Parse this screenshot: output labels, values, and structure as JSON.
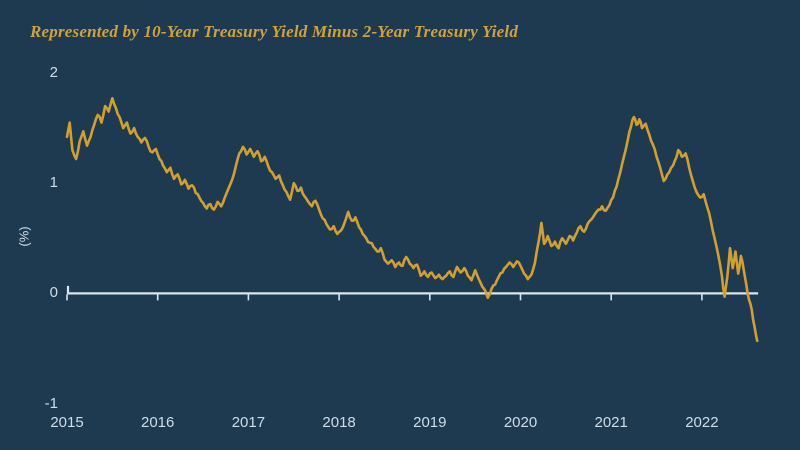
{
  "title": "Represented by 10-Year Treasury Yield Minus 2-Year Treasury Yield",
  "colors": {
    "background": "#1e3a50",
    "line": "#d2a02e",
    "axis": "#d9e6ee",
    "tick_label": "#cfdde8",
    "title": "#d0a23e"
  },
  "chart_data": {
    "type": "line",
    "title": "Represented by 10-Year Treasury Yield Minus 2-Year Treasury Yield",
    "ylabel": "(%)",
    "xlabel": "",
    "grid": false,
    "legend": "none",
    "xlim": [
      2015,
      2022.66
    ],
    "ylim": [
      -1,
      2
    ],
    "x_ticks": [
      2015,
      2016,
      2017,
      2018,
      2019,
      2020,
      2021,
      2022
    ],
    "y_ticks": [
      2,
      1,
      0,
      -1
    ],
    "zero_baseline": true,
    "series_label": "10-Year Treasury Yield minus 2-Year Treasury Yield",
    "points": [
      [
        2015.0,
        1.42
      ],
      [
        2015.03,
        1.55
      ],
      [
        2015.06,
        1.3
      ],
      [
        2015.1,
        1.22
      ],
      [
        2015.14,
        1.38
      ],
      [
        2015.18,
        1.47
      ],
      [
        2015.22,
        1.34
      ],
      [
        2015.26,
        1.42
      ],
      [
        2015.3,
        1.53
      ],
      [
        2015.34,
        1.62
      ],
      [
        2015.38,
        1.55
      ],
      [
        2015.42,
        1.7
      ],
      [
        2015.46,
        1.65
      ],
      [
        2015.5,
        1.77
      ],
      [
        2015.54,
        1.68
      ],
      [
        2015.58,
        1.6
      ],
      [
        2015.62,
        1.5
      ],
      [
        2015.66,
        1.55
      ],
      [
        2015.7,
        1.45
      ],
      [
        2015.74,
        1.5
      ],
      [
        2015.78,
        1.42
      ],
      [
        2015.82,
        1.37
      ],
      [
        2015.86,
        1.41
      ],
      [
        2015.9,
        1.33
      ],
      [
        2015.94,
        1.28
      ],
      [
        2015.98,
        1.31
      ],
      [
        2016.02,
        1.22
      ],
      [
        2016.06,
        1.16
      ],
      [
        2016.1,
        1.1
      ],
      [
        2016.14,
        1.14
      ],
      [
        2016.18,
        1.04
      ],
      [
        2016.22,
        1.08
      ],
      [
        2016.26,
        0.99
      ],
      [
        2016.3,
        1.03
      ],
      [
        2016.34,
        0.95
      ],
      [
        2016.38,
        0.98
      ],
      [
        2016.42,
        0.91
      ],
      [
        2016.46,
        0.87
      ],
      [
        2016.5,
        0.82
      ],
      [
        2016.54,
        0.77
      ],
      [
        2016.58,
        0.81
      ],
      [
        2016.62,
        0.76
      ],
      [
        2016.66,
        0.83
      ],
      [
        2016.7,
        0.79
      ],
      [
        2016.74,
        0.87
      ],
      [
        2016.78,
        0.95
      ],
      [
        2016.82,
        1.03
      ],
      [
        2016.86,
        1.15
      ],
      [
        2016.9,
        1.27
      ],
      [
        2016.94,
        1.33
      ],
      [
        2016.98,
        1.26
      ],
      [
        2017.02,
        1.31
      ],
      [
        2017.06,
        1.24
      ],
      [
        2017.1,
        1.29
      ],
      [
        2017.14,
        1.2
      ],
      [
        2017.18,
        1.24
      ],
      [
        2017.22,
        1.15
      ],
      [
        2017.26,
        1.1
      ],
      [
        2017.3,
        1.04
      ],
      [
        2017.34,
        1.07
      ],
      [
        2017.38,
        0.98
      ],
      [
        2017.42,
        0.92
      ],
      [
        2017.46,
        0.85
      ],
      [
        2017.5,
        1.0
      ],
      [
        2017.54,
        0.93
      ],
      [
        2017.58,
        0.96
      ],
      [
        2017.62,
        0.88
      ],
      [
        2017.66,
        0.83
      ],
      [
        2017.7,
        0.79
      ],
      [
        2017.74,
        0.84
      ],
      [
        2017.78,
        0.76
      ],
      [
        2017.82,
        0.68
      ],
      [
        2017.86,
        0.63
      ],
      [
        2017.9,
        0.58
      ],
      [
        2017.94,
        0.61
      ],
      [
        2017.98,
        0.54
      ],
      [
        2018.02,
        0.57
      ],
      [
        2018.06,
        0.64
      ],
      [
        2018.1,
        0.74
      ],
      [
        2018.14,
        0.66
      ],
      [
        2018.18,
        0.69
      ],
      [
        2018.22,
        0.6
      ],
      [
        2018.26,
        0.54
      ],
      [
        2018.3,
        0.5
      ],
      [
        2018.34,
        0.46
      ],
      [
        2018.38,
        0.42
      ],
      [
        2018.42,
        0.38
      ],
      [
        2018.46,
        0.41
      ],
      [
        2018.5,
        0.31
      ],
      [
        2018.54,
        0.27
      ],
      [
        2018.58,
        0.3
      ],
      [
        2018.62,
        0.24
      ],
      [
        2018.66,
        0.28
      ],
      [
        2018.7,
        0.25
      ],
      [
        2018.74,
        0.33
      ],
      [
        2018.78,
        0.27
      ],
      [
        2018.82,
        0.23
      ],
      [
        2018.86,
        0.26
      ],
      [
        2018.9,
        0.16
      ],
      [
        2018.94,
        0.2
      ],
      [
        2018.98,
        0.15
      ],
      [
        2019.02,
        0.19
      ],
      [
        2019.06,
        0.14
      ],
      [
        2019.1,
        0.17
      ],
      [
        2019.14,
        0.13
      ],
      [
        2019.18,
        0.16
      ],
      [
        2019.22,
        0.2
      ],
      [
        2019.26,
        0.15
      ],
      [
        2019.3,
        0.24
      ],
      [
        2019.34,
        0.19
      ],
      [
        2019.38,
        0.23
      ],
      [
        2019.42,
        0.16
      ],
      [
        2019.46,
        0.12
      ],
      [
        2019.5,
        0.21
      ],
      [
        2019.54,
        0.13
      ],
      [
        2019.58,
        0.06
      ],
      [
        2019.62,
        0.01
      ],
      [
        2019.64,
        -0.04
      ],
      [
        2019.68,
        0.04
      ],
      [
        2019.72,
        0.08
      ],
      [
        2019.76,
        0.15
      ],
      [
        2019.8,
        0.19
      ],
      [
        2019.84,
        0.24
      ],
      [
        2019.88,
        0.28
      ],
      [
        2019.92,
        0.24
      ],
      [
        2019.96,
        0.29
      ],
      [
        2020.0,
        0.25
      ],
      [
        2020.04,
        0.18
      ],
      [
        2020.08,
        0.13
      ],
      [
        2020.12,
        0.17
      ],
      [
        2020.16,
        0.28
      ],
      [
        2020.2,
        0.47
      ],
      [
        2020.23,
        0.64
      ],
      [
        2020.26,
        0.45
      ],
      [
        2020.3,
        0.52
      ],
      [
        2020.34,
        0.43
      ],
      [
        2020.38,
        0.47
      ],
      [
        2020.42,
        0.41
      ],
      [
        2020.46,
        0.5
      ],
      [
        2020.5,
        0.45
      ],
      [
        2020.54,
        0.52
      ],
      [
        2020.58,
        0.48
      ],
      [
        2020.62,
        0.55
      ],
      [
        2020.66,
        0.61
      ],
      [
        2020.7,
        0.56
      ],
      [
        2020.74,
        0.63
      ],
      [
        2020.78,
        0.67
      ],
      [
        2020.82,
        0.72
      ],
      [
        2020.86,
        0.76
      ],
      [
        2020.9,
        0.79
      ],
      [
        2020.94,
        0.75
      ],
      [
        2020.98,
        0.8
      ],
      [
        2021.02,
        0.87
      ],
      [
        2021.06,
        0.97
      ],
      [
        2021.1,
        1.1
      ],
      [
        2021.14,
        1.24
      ],
      [
        2021.18,
        1.38
      ],
      [
        2021.22,
        1.52
      ],
      [
        2021.25,
        1.6
      ],
      [
        2021.28,
        1.53
      ],
      [
        2021.31,
        1.58
      ],
      [
        2021.34,
        1.5
      ],
      [
        2021.38,
        1.54
      ],
      [
        2021.42,
        1.44
      ],
      [
        2021.46,
        1.35
      ],
      [
        2021.5,
        1.24
      ],
      [
        2021.54,
        1.14
      ],
      [
        2021.58,
        1.02
      ],
      [
        2021.62,
        1.08
      ],
      [
        2021.66,
        1.14
      ],
      [
        2021.7,
        1.2
      ],
      [
        2021.74,
        1.3
      ],
      [
        2021.78,
        1.24
      ],
      [
        2021.82,
        1.27
      ],
      [
        2021.86,
        1.14
      ],
      [
        2021.9,
        1.02
      ],
      [
        2021.94,
        0.92
      ],
      [
        2021.98,
        0.87
      ],
      [
        2022.02,
        0.9
      ],
      [
        2022.06,
        0.78
      ],
      [
        2022.1,
        0.65
      ],
      [
        2022.14,
        0.5
      ],
      [
        2022.18,
        0.35
      ],
      [
        2022.22,
        0.16
      ],
      [
        2022.25,
        -0.03
      ],
      [
        2022.28,
        0.15
      ],
      [
        2022.31,
        0.41
      ],
      [
        2022.34,
        0.23
      ],
      [
        2022.37,
        0.38
      ],
      [
        2022.4,
        0.18
      ],
      [
        2022.43,
        0.34
      ],
      [
        2022.46,
        0.22
      ],
      [
        2022.49,
        0.08
      ],
      [
        2022.52,
        -0.06
      ],
      [
        2022.55,
        -0.15
      ],
      [
        2022.58,
        -0.3
      ],
      [
        2022.61,
        -0.43
      ]
    ]
  }
}
